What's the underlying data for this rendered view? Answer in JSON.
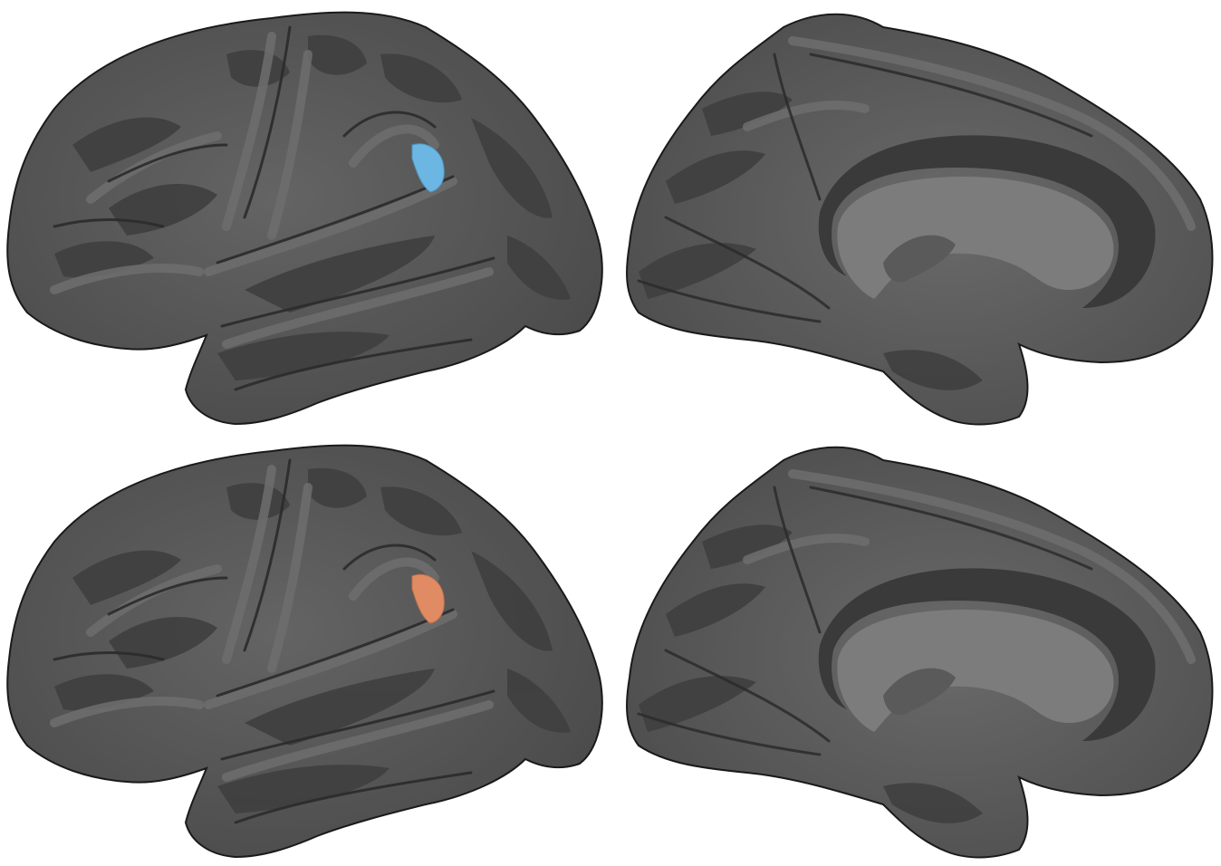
{
  "figure": {
    "views": [
      {
        "view": "lateral",
        "row": "top",
        "overlay_color": "#6BB6E3"
      },
      {
        "view": "medial",
        "row": "top"
      },
      {
        "view": "lateral",
        "row": "bottom",
        "overlay_color": "#E08B63"
      },
      {
        "view": "medial",
        "row": "bottom"
      }
    ],
    "colors": {
      "background": "#FFFFFF",
      "gyri": "#5A5A5A",
      "sulci": "#3E3E3E",
      "outline": "#1A1A1A",
      "medial_wall": "#7C7C7C",
      "overlay_blue": "#6BB6E3",
      "overlay_orange": "#E08B63"
    }
  }
}
